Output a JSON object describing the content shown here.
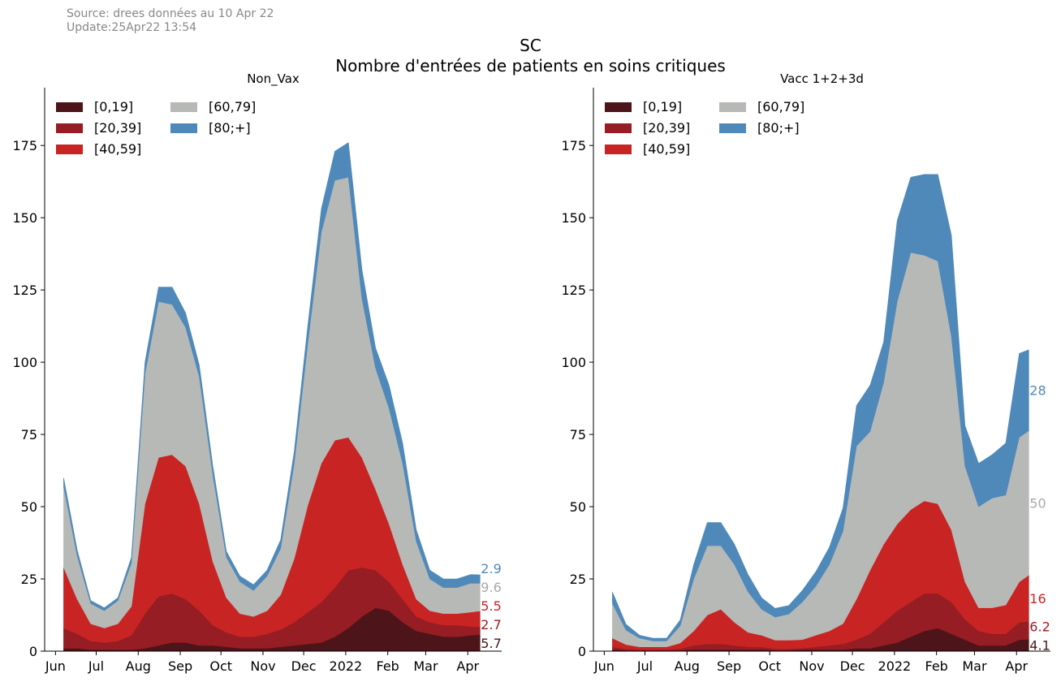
{
  "header": {
    "source_line": "Source: drees données au 10 Apr 22",
    "update_line": "Update:25Apr22 13:54"
  },
  "title": {
    "line1": "SC",
    "line2": "Nombre d'entrées de patients en soins critiques"
  },
  "colors": {
    "[0,19]": "#4d1519",
    "[20,39]": "#961d23",
    "[40,59]": "#c82423",
    "[60,79]": "#b7b9b6",
    "[80;+]": "#4f89ba",
    "end_label_[0,19]": "#4d1519",
    "end_label_[20,39]": "#961d23",
    "end_label_[40,59]": "#c82423",
    "end_label_[60,79]": "#a8aaa8",
    "end_label_[80;+]": "#4f89ba"
  },
  "chart_data": [
    {
      "type": "area",
      "stacked": true,
      "title": "Non_Vax",
      "xlabel": "",
      "ylabel": "",
      "ylim": [
        0,
        195
      ],
      "yticks": [
        0,
        25,
        50,
        75,
        100,
        125,
        150,
        175
      ],
      "xrange": [
        "2021-05-24",
        "2022-04-26"
      ],
      "xticks": [
        {
          "date": "2021-06-01",
          "label": "Jun"
        },
        {
          "date": "2021-07-01",
          "label": "Jul"
        },
        {
          "date": "2021-08-01",
          "label": "Aug"
        },
        {
          "date": "2021-09-01",
          "label": "Sep"
        },
        {
          "date": "2021-10-01",
          "label": "Oct"
        },
        {
          "date": "2021-11-01",
          "label": "Nov"
        },
        {
          "date": "2021-12-01",
          "label": "Dec"
        },
        {
          "date": "2022-01-01",
          "label": "2022"
        },
        {
          "date": "2022-02-01",
          "label": "Feb"
        },
        {
          "date": "2022-03-01",
          "label": "Mar"
        },
        {
          "date": "2022-04-01",
          "label": "Apr"
        }
      ],
      "grid": false,
      "legend": {
        "placement": "top-left",
        "columns": 2,
        "order": [
          "[0,19]",
          "[20,39]",
          "[40,59]",
          "[60,79]",
          "[80;+]"
        ]
      },
      "x": [
        "2021-06-07",
        "2021-06-17",
        "2021-06-27",
        "2021-07-07",
        "2021-07-17",
        "2021-07-27",
        "2021-08-06",
        "2021-08-16",
        "2021-08-26",
        "2021-09-05",
        "2021-09-15",
        "2021-09-25",
        "2021-10-05",
        "2021-10-15",
        "2021-10-25",
        "2021-11-04",
        "2021-11-14",
        "2021-11-24",
        "2021-12-04",
        "2021-12-14",
        "2021-12-24",
        "2022-01-03",
        "2022-01-13",
        "2022-01-23",
        "2022-02-02",
        "2022-02-12",
        "2022-02-22",
        "2022-03-04",
        "2022-03-14",
        "2022-03-24",
        "2022-04-03",
        "2022-04-10"
      ],
      "series": [
        {
          "name": "[0,19]",
          "values": [
            1,
            1,
            0.5,
            0.5,
            0.5,
            0.5,
            1,
            2,
            3,
            3,
            2,
            2,
            1.5,
            1,
            1,
            1,
            1.5,
            2,
            2.5,
            3,
            5,
            8,
            12,
            15,
            14,
            10,
            7,
            6,
            5,
            5,
            5.5,
            5.7
          ]
        },
        {
          "name": "[20,39]",
          "values": [
            7,
            5,
            3,
            2.5,
            3,
            5,
            12,
            17,
            17,
            15,
            12,
            7,
            5,
            4,
            4,
            5,
            6,
            8,
            11,
            14,
            17,
            20,
            17,
            13,
            10,
            8,
            5,
            4,
            4,
            4,
            3,
            2.7
          ]
        },
        {
          "name": "[40,59]",
          "values": [
            21,
            12,
            6,
            5,
            6,
            10,
            38,
            48,
            48,
            46,
            37,
            22,
            12,
            8,
            7,
            8,
            12,
            22,
            37,
            48,
            51,
            46,
            38,
            28,
            20,
            12,
            6,
            4,
            4,
            4,
            5,
            5.5
          ]
        },
        {
          "name": "[60,79]",
          "values": [
            28,
            15,
            7,
            6,
            8,
            15,
            45,
            54,
            52,
            48,
            44,
            30,
            14,
            11,
            9,
            12,
            16,
            33,
            56,
            80,
            90,
            90,
            55,
            42,
            40,
            35,
            20,
            11,
            9,
            9,
            10,
            9.6
          ]
        },
        {
          "name": "[80;+]",
          "values": [
            3,
            2,
            1,
            1,
            1,
            2,
            4,
            5,
            6,
            5,
            4,
            3,
            2,
            2,
            2,
            2,
            3,
            4,
            6,
            8,
            10,
            12,
            10,
            7,
            8,
            7,
            4,
            3,
            3,
            3,
            3,
            2.9
          ]
        }
      ],
      "end_labels": [
        "5.7",
        "2.7",
        "5.5",
        "9.6",
        "2.9"
      ]
    },
    {
      "type": "area",
      "stacked": true,
      "title": "Vacc 1+2+3d",
      "xlabel": "",
      "ylabel": "",
      "ylim": [
        0,
        195
      ],
      "yticks": [
        0,
        25,
        50,
        75,
        100,
        125,
        150,
        175
      ],
      "xrange": [
        "2021-05-24",
        "2022-04-26"
      ],
      "xticks": [
        {
          "date": "2021-06-01",
          "label": "Jun"
        },
        {
          "date": "2021-07-01",
          "label": "Jul"
        },
        {
          "date": "2021-08-01",
          "label": "Aug"
        },
        {
          "date": "2021-09-01",
          "label": "Sep"
        },
        {
          "date": "2021-10-01",
          "label": "Oct"
        },
        {
          "date": "2021-11-01",
          "label": "Nov"
        },
        {
          "date": "2021-12-01",
          "label": "Dec"
        },
        {
          "date": "2022-01-01",
          "label": "2022"
        },
        {
          "date": "2022-02-01",
          "label": "Feb"
        },
        {
          "date": "2022-03-01",
          "label": "Mar"
        },
        {
          "date": "2022-04-01",
          "label": "Apr"
        }
      ],
      "grid": false,
      "legend": {
        "placement": "top-left",
        "columns": 2,
        "order": [
          "[0,19]",
          "[20,39]",
          "[40,59]",
          "[60,79]",
          "[80;+]"
        ]
      },
      "x": [
        "2021-06-07",
        "2021-06-17",
        "2021-06-27",
        "2021-07-07",
        "2021-07-17",
        "2021-07-27",
        "2021-08-06",
        "2021-08-16",
        "2021-08-26",
        "2021-09-05",
        "2021-09-15",
        "2021-09-25",
        "2021-10-05",
        "2021-10-15",
        "2021-10-25",
        "2021-11-04",
        "2021-11-14",
        "2021-11-24",
        "2021-12-04",
        "2021-12-14",
        "2021-12-24",
        "2022-01-03",
        "2022-01-13",
        "2022-01-23",
        "2022-02-02",
        "2022-02-12",
        "2022-02-22",
        "2022-03-04",
        "2022-03-14",
        "2022-03-24",
        "2022-04-03",
        "2022-04-10"
      ],
      "series": [
        {
          "name": "[0,19]",
          "values": [
            0.5,
            0.3,
            0.2,
            0.2,
            0.2,
            0.3,
            0.5,
            0.5,
            0.5,
            0.5,
            0.5,
            0.5,
            0.3,
            0.3,
            0.5,
            0.5,
            0.5,
            0.5,
            1,
            1,
            2,
            3,
            5,
            7,
            8,
            6,
            4,
            2,
            2,
            2,
            4,
            4.1
          ]
        },
        {
          "name": "[20,39]",
          "values": [
            1,
            0.5,
            0.3,
            0.3,
            0.3,
            0.5,
            1.5,
            2,
            2,
            1.5,
            1,
            1,
            0.5,
            0.5,
            0.5,
            1,
            1.5,
            2,
            3,
            5,
            8,
            11,
            12,
            13,
            12,
            11,
            7,
            5,
            4,
            4,
            6,
            6.2
          ]
        },
        {
          "name": "[40,59]",
          "values": [
            3,
            1.5,
            1,
            1,
            1,
            2,
            5,
            10,
            12,
            8,
            5,
            4,
            3,
            3,
            3,
            4,
            5,
            7,
            14,
            22,
            27,
            30,
            32,
            32,
            31,
            25,
            13,
            8,
            9,
            10,
            14,
            16
          ]
        },
        {
          "name": "[60,79]",
          "values": [
            12,
            5,
            3,
            2,
            2,
            6,
            18,
            24,
            22,
            20,
            14,
            9,
            8,
            9,
            13,
            17,
            23,
            32,
            53,
            48,
            56,
            77,
            89,
            85,
            84,
            67,
            40,
            35,
            38,
            38,
            50,
            50
          ]
        },
        {
          "name": "[80;+]",
          "values": [
            4,
            2,
            1,
            1,
            1,
            2,
            5,
            8,
            8,
            7,
            6,
            4,
            3,
            3,
            4,
            5,
            6,
            8,
            14,
            16,
            14,
            28,
            26,
            28,
            30,
            35,
            14,
            15,
            15,
            18,
            29,
            28
          ]
        }
      ],
      "end_labels": [
        "4.1",
        "6.2",
        "16",
        "50",
        "28"
      ]
    }
  ]
}
